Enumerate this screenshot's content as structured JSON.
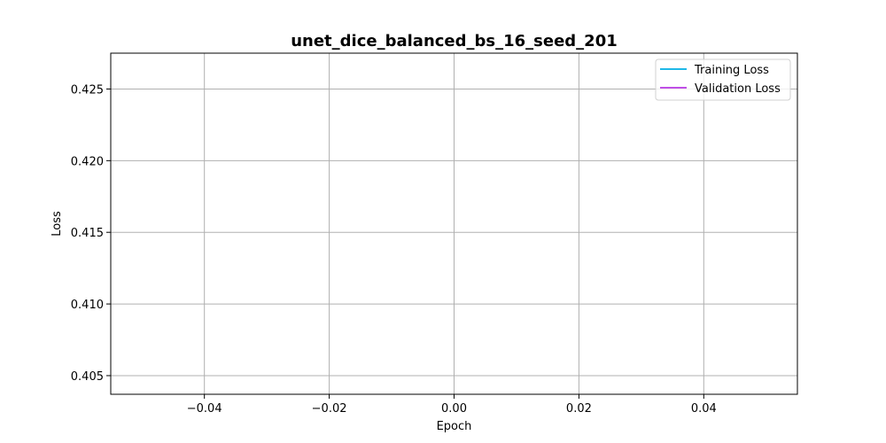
{
  "chart_data": {
    "type": "line",
    "title": "unet_dice_balanced_bs_16_seed_201",
    "xlabel": "Epoch",
    "ylabel": "Loss",
    "xlim": [
      -0.055,
      0.055
    ],
    "ylim": [
      0.4037,
      0.4275
    ],
    "xticks": [
      -0.04,
      -0.02,
      0.0,
      0.02,
      0.04
    ],
    "xtick_labels": [
      "−0.04",
      "−0.02",
      "0.00",
      "0.02",
      "0.04"
    ],
    "yticks": [
      0.405,
      0.41,
      0.415,
      0.42,
      0.425
    ],
    "ytick_labels": [
      "0.405",
      "0.410",
      "0.415",
      "0.420",
      "0.425"
    ],
    "grid": true,
    "legend_position": "top-right",
    "series": [
      {
        "name": "Training Loss",
        "color": "#1fb8e8",
        "x": [],
        "y": []
      },
      {
        "name": "Validation Loss",
        "color": "#bf4fe6",
        "x": [],
        "y": []
      }
    ]
  }
}
